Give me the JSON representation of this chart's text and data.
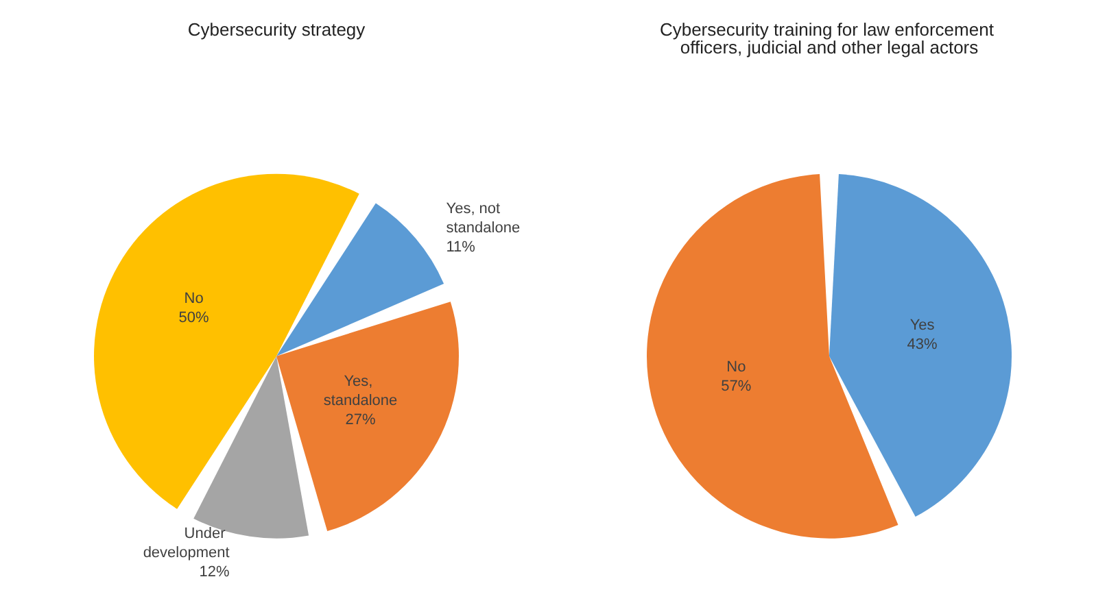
{
  "chart_data": [
    {
      "type": "pie",
      "title": "Cybersecurity strategy",
      "categories": [
        "Yes, not standalone",
        "Yes, standalone",
        "Under development",
        "No"
      ],
      "values": [
        11,
        27,
        12,
        50
      ],
      "value_labels": [
        "11%",
        "27%",
        "12%",
        "50%"
      ],
      "colors": [
        "#5b9bd5",
        "#ed7d31",
        "#a5a5a5",
        "#ffc000"
      ]
    },
    {
      "type": "pie",
      "title": "Cybersecurity training for law enforcement officers, judicial and other legal actors",
      "categories": [
        "Yes",
        "No"
      ],
      "values": [
        43,
        57
      ],
      "value_labels": [
        "43%",
        "57%"
      ],
      "colors": [
        "#5b9bd5",
        "#ed7d31"
      ]
    }
  ]
}
